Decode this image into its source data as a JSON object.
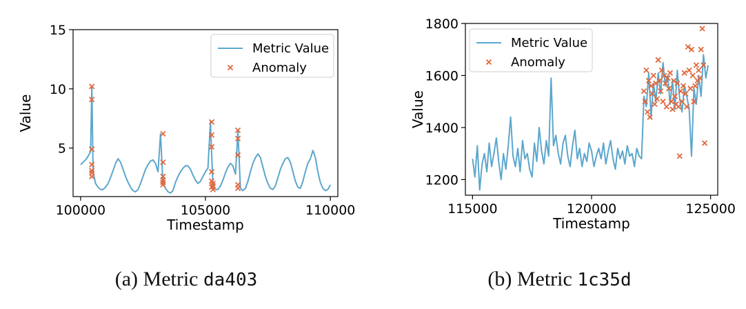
{
  "colors": {
    "line": "#5ba6cc",
    "anomaly": "#e0673d",
    "axis": "#000000"
  },
  "chart_data": [
    {
      "type": "line",
      "panel": "a",
      "caption_prefix": "(a) Metric",
      "caption_id": "da403",
      "xlabel": "Timestamp",
      "ylabel": "Value",
      "xlim": [
        99700,
        110300
      ],
      "ylim": [
        0.9,
        15
      ],
      "xticks": [
        100000,
        105000,
        110000
      ],
      "yticks": [
        5,
        10,
        15
      ],
      "legend_position": "upper right",
      "series": [
        {
          "name": "Metric Value",
          "x": [
            100000,
            100100,
            100200,
            100300,
            100400,
            100450,
            100500,
            100600,
            100700,
            100800,
            100900,
            101000,
            101100,
            101200,
            101300,
            101400,
            101500,
            101600,
            101700,
            101800,
            101900,
            102000,
            102100,
            102200,
            102300,
            102400,
            102500,
            102600,
            102700,
            102800,
            102900,
            103000,
            103100,
            103200,
            103300,
            103400,
            103500,
            103600,
            103700,
            103800,
            103900,
            104000,
            104100,
            104200,
            104300,
            104400,
            104500,
            104600,
            104700,
            104800,
            104900,
            105000,
            105100,
            105200,
            105300,
            105400,
            105500,
            105600,
            105700,
            105800,
            105900,
            106000,
            106100,
            106200,
            106300,
            106400,
            106500,
            106600,
            106700,
            106800,
            106900,
            107000,
            107100,
            107200,
            107300,
            107400,
            107500,
            107600,
            107700,
            107800,
            107900,
            108000,
            108100,
            108200,
            108300,
            108400,
            108500,
            108600,
            108700,
            108800,
            108900,
            109000,
            109100,
            109200,
            109300,
            109400,
            109500,
            109600,
            109700,
            109800,
            109900,
            110000
          ],
          "values": [
            3.6,
            3.8,
            4.0,
            4.3,
            4.7,
            10.2,
            3.0,
            2.0,
            1.7,
            1.5,
            1.5,
            1.7,
            2.0,
            2.5,
            3.1,
            3.7,
            4.1,
            3.8,
            3.2,
            2.6,
            2.1,
            1.7,
            1.4,
            1.3,
            1.5,
            2.0,
            2.6,
            3.2,
            3.6,
            3.9,
            4.0,
            3.7,
            3.0,
            6.2,
            2.0,
            1.6,
            1.3,
            1.2,
            1.4,
            2.1,
            2.6,
            3.0,
            3.3,
            3.5,
            3.5,
            3.2,
            2.7,
            2.3,
            2.0,
            2.2,
            2.6,
            3.0,
            3.3,
            7.2,
            1.7,
            1.5,
            1.5,
            1.8,
            2.3,
            2.9,
            3.4,
            3.7,
            3.5,
            2.8,
            6.4,
            1.6,
            1.4,
            1.6,
            2.2,
            3.0,
            3.7,
            4.2,
            4.5,
            4.2,
            3.4,
            2.6,
            2.0,
            1.6,
            1.5,
            1.8,
            2.5,
            3.2,
            3.7,
            4.1,
            4.2,
            3.8,
            3.0,
            2.2,
            1.7,
            1.6,
            2.2,
            3.0,
            3.7,
            4.1,
            4.8,
            4.2,
            3.0,
            2.1,
            1.6,
            1.4,
            1.5,
            1.9
          ]
        },
        {
          "name": "Anomaly",
          "x": [
            100450,
            100450,
            100450,
            100450,
            100450,
            100450,
            100450,
            103300,
            103300,
            103300,
            103300,
            103300,
            103300,
            105250,
            105250,
            105250,
            105250,
            105250,
            105250,
            105300,
            105300,
            105300,
            106300,
            106300,
            106300,
            106300,
            106300
          ],
          "values": [
            10.2,
            9.1,
            4.9,
            3.6,
            3.1,
            2.9,
            2.6,
            6.2,
            3.8,
            2.6,
            2.3,
            2.1,
            1.9,
            7.2,
            6.1,
            5.1,
            3.0,
            2.2,
            1.7,
            1.5,
            1.8,
            2.0,
            6.5,
            5.8,
            4.4,
            1.9,
            1.6
          ]
        }
      ]
    },
    {
      "type": "line",
      "panel": "b",
      "caption_prefix": "(b) Metric",
      "caption_id": "1c35d",
      "xlabel": "Timestamp",
      "ylabel": "Value",
      "xlim": [
        114700,
        125300
      ],
      "ylim": [
        1140,
        1800
      ],
      "xticks": [
        115000,
        120000,
        125000
      ],
      "yticks": [
        1200,
        1400,
        1600,
        1800
      ],
      "legend_position": "upper left",
      "series": [
        {
          "name": "Metric Value",
          "x": [
            115000,
            115100,
            115200,
            115300,
            115400,
            115500,
            115600,
            115700,
            115800,
            115900,
            116000,
            116100,
            116200,
            116300,
            116400,
            116500,
            116600,
            116700,
            116800,
            116900,
            117000,
            117100,
            117200,
            117300,
            117400,
            117500,
            117600,
            117700,
            117800,
            117900,
            118000,
            118100,
            118200,
            118300,
            118400,
            118500,
            118600,
            118700,
            118800,
            118900,
            119000,
            119100,
            119200,
            119300,
            119400,
            119500,
            119600,
            119700,
            119800,
            119900,
            120000,
            120100,
            120200,
            120300,
            120400,
            120500,
            120600,
            120700,
            120800,
            120900,
            121000,
            121100,
            121200,
            121300,
            121400,
            121500,
            121600,
            121700,
            121800,
            121900,
            122000,
            122100,
            122200,
            122300,
            122400,
            122500,
            122600,
            122700,
            122800,
            122900,
            123000,
            123100,
            123200,
            123300,
            123400,
            123500,
            123600,
            123700,
            123800,
            123900,
            124000,
            124100,
            124200,
            124300,
            124400,
            124500,
            124600,
            124700,
            124800,
            124900
          ],
          "values": [
            1280,
            1210,
            1330,
            1160,
            1260,
            1300,
            1230,
            1340,
            1250,
            1300,
            1360,
            1270,
            1200,
            1300,
            1240,
            1330,
            1440,
            1290,
            1250,
            1320,
            1230,
            1350,
            1280,
            1300,
            1240,
            1210,
            1340,
            1270,
            1400,
            1310,
            1260,
            1350,
            1290,
            1590,
            1330,
            1370,
            1300,
            1260,
            1340,
            1370,
            1290,
            1250,
            1330,
            1390,
            1280,
            1320,
            1250,
            1300,
            1270,
            1340,
            1310,
            1250,
            1290,
            1320,
            1280,
            1340,
            1260,
            1310,
            1350,
            1280,
            1240,
            1320,
            1280,
            1310,
            1260,
            1330,
            1290,
            1300,
            1250,
            1320,
            1290,
            1280,
            1520,
            1480,
            1610,
            1440,
            1570,
            1500,
            1610,
            1530,
            1650,
            1560,
            1600,
            1490,
            1580,
            1470,
            1620,
            1510,
            1460,
            1560,
            1520,
            1470,
            1290,
            1550,
            1490,
            1600,
            1520,
            1680,
            1590,
            1640
          ]
        },
        {
          "name": "Anomaly",
          "x": [
            122200,
            122250,
            122300,
            122350,
            122400,
            122450,
            122500,
            122550,
            122600,
            122650,
            122700,
            122750,
            122800,
            122850,
            122900,
            122950,
            123000,
            123050,
            123100,
            123150,
            123200,
            123250,
            123300,
            123350,
            123400,
            123450,
            123500,
            123550,
            123600,
            123650,
            123700,
            123750,
            123800,
            123850,
            123900,
            123950,
            124000,
            124050,
            124100,
            124150,
            124200,
            124250,
            124300,
            124350,
            124400,
            124450,
            124500,
            124550,
            124600,
            124650,
            124700,
            124750
          ],
          "values": [
            1540,
            1500,
            1620,
            1460,
            1580,
            1440,
            1560,
            1530,
            1600,
            1490,
            1570,
            1510,
            1660,
            1580,
            1540,
            1620,
            1500,
            1600,
            1570,
            1480,
            1590,
            1550,
            1610,
            1500,
            1470,
            1580,
            1520,
            1490,
            1570,
            1480,
            1290,
            1540,
            1500,
            1560,
            1610,
            1530,
            1480,
            1710,
            1620,
            1550,
            1700,
            1600,
            1500,
            1560,
            1640,
            1580,
            1620,
            1590,
            1700,
            1780,
            1640,
            1340
          ]
        }
      ]
    }
  ]
}
